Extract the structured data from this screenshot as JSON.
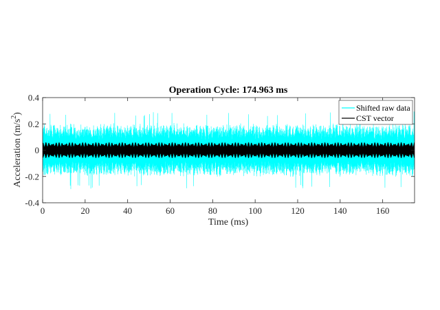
{
  "chart_data": {
    "type": "line",
    "title": "Operation Cycle: 174.963 ms",
    "xlabel": "Time (ms)",
    "ylabel_main": "Acceleration (m/s",
    "ylabel_sup": "2",
    "ylabel_close": ")",
    "xlim": [
      0,
      175
    ],
    "ylim": [
      -0.4,
      0.4
    ],
    "xticks": [
      0,
      20,
      40,
      60,
      80,
      100,
      120,
      140,
      160
    ],
    "xtick_labels": [
      "0",
      "20",
      "40",
      "60",
      "80",
      "100",
      "120",
      "140",
      "160"
    ],
    "yticks": [
      -0.4,
      -0.2,
      0,
      0.2,
      0.4
    ],
    "ytick_labels": [
      "-0.4",
      "-0.2",
      "0",
      "0.2",
      "0.4"
    ],
    "grid": false,
    "legend_position": "top-right",
    "series": [
      {
        "name": "Shifted raw data",
        "color": "#00ffff",
        "envelope_typical": 0.2,
        "envelope_peak": 0.29,
        "description_values": {
          "min": -0.3,
          "max": 0.27
        }
      },
      {
        "name": "CST vector",
        "color": "#000000",
        "envelope_typical": 0.06,
        "cycles": 56
      }
    ]
  }
}
